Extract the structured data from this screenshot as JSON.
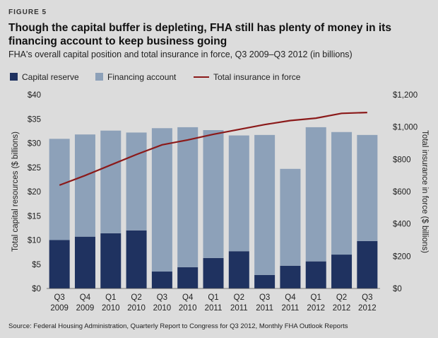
{
  "figure_label": "FIGURE 5",
  "title": "Though the capital buffer is depleting, FHA still has plenty of money in its financing account to keep business going",
  "subtitle": "FHA's overall capital position and total insurance in force, Q3 2009–Q3 2012 (in billions)",
  "source": "Source: Federal Housing Administration, Quarterly Report to Congress for Q3 2012, Monthly FHA Outlook Reports",
  "colors": {
    "capital_reserve": "#1f3260",
    "financing_account": "#8da1b9",
    "insurance_line": "#8b1a1a",
    "background": "#dcdcdc"
  },
  "chart_data": {
    "type": "bar",
    "stacked": true,
    "categories": [
      [
        "Q3",
        "2009"
      ],
      [
        "Q4",
        "2009"
      ],
      [
        "Q1",
        "2010"
      ],
      [
        "Q2",
        "2010"
      ],
      [
        "Q3",
        "2010"
      ],
      [
        "Q4",
        "2010"
      ],
      [
        "Q1",
        "2011"
      ],
      [
        "Q2",
        "2011"
      ],
      [
        "Q3",
        "2011"
      ],
      [
        "Q4",
        "2011"
      ],
      [
        "Q1",
        "2012"
      ],
      [
        "Q2",
        "2012"
      ],
      [
        "Q3",
        "2012"
      ]
    ],
    "series": [
      {
        "name": "Capital reserve",
        "type": "bar",
        "axis": "left",
        "values": [
          10.0,
          10.7,
          11.4,
          12.0,
          3.5,
          4.4,
          6.3,
          7.7,
          2.8,
          4.7,
          5.6,
          7.0,
          9.8
        ]
      },
      {
        "name": "Financing account",
        "type": "bar",
        "axis": "left",
        "values": [
          20.9,
          21.1,
          21.2,
          20.2,
          29.6,
          28.9,
          26.4,
          23.9,
          28.9,
          20.0,
          27.7,
          25.3,
          21.9
        ]
      },
      {
        "name": "Total insurance in force",
        "type": "line",
        "axis": "right",
        "values": [
          640,
          700,
          765,
          830,
          890,
          920,
          955,
          985,
          1015,
          1040,
          1055,
          1085,
          1090
        ]
      }
    ],
    "ylabel": "Total capital resources ($ billions)",
    "y2label": "Total insurance in force ($ billions)",
    "ylim": [
      0,
      40
    ],
    "y2lim": [
      0,
      1200
    ],
    "yticks": [
      "$0",
      "$5",
      "$10",
      "$15",
      "$20",
      "$25",
      "$30",
      "$35",
      "$40"
    ],
    "y2ticks": [
      "$0",
      "$200",
      "$400",
      "$600",
      "$800",
      "$1,000",
      "$1,200"
    ],
    "grid": false,
    "legend_position": "top-left"
  }
}
